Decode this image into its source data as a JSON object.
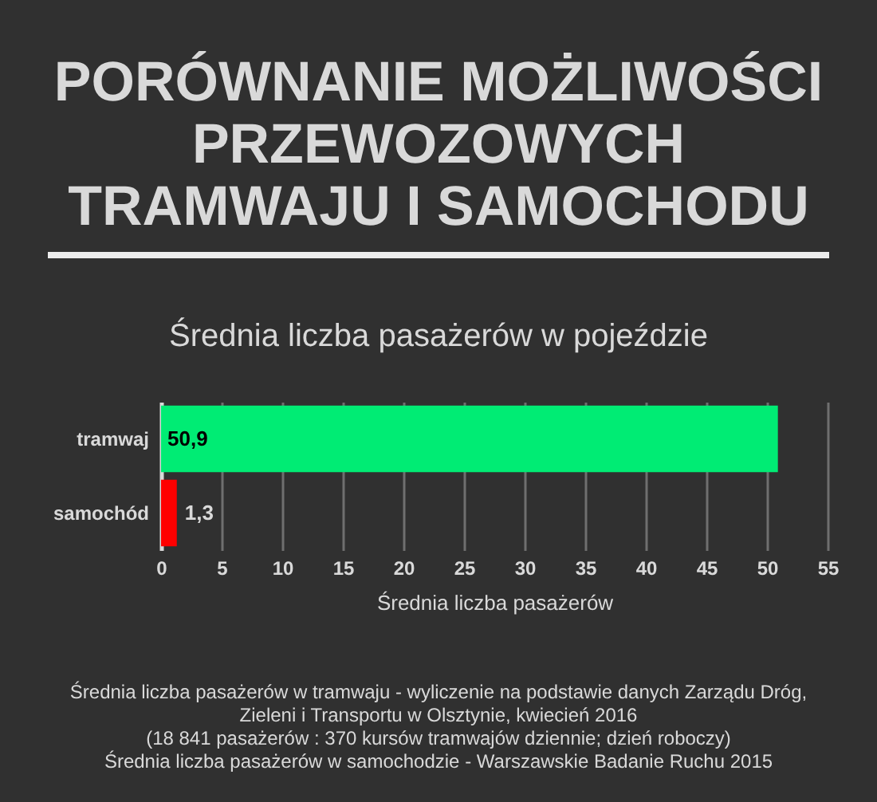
{
  "chart_data": {
    "type": "bar",
    "orientation": "horizontal",
    "title": "PORÓWNANIE MOŻLIWOŚCI\nPRZEWOZOWYCH\nTRAMWAJU I SAMOCHODU",
    "subtitle": "Średnia liczba pasażerów w pojeździe",
    "xlabel": "Średnia liczba pasażerów",
    "categories": [
      "tramwaj",
      "samochód"
    ],
    "values": [
      50.9,
      1.3
    ],
    "colors": [
      "#00ec74",
      "#ff0000"
    ],
    "value_labels": [
      "50,9",
      "1,3"
    ],
    "xlim": [
      0,
      55
    ],
    "xticks": [
      0,
      5,
      10,
      15,
      20,
      25,
      30,
      35,
      40,
      45,
      50,
      55
    ],
    "grid": "x",
    "annotations": [
      "Średnia liczba pasażerów w tramwaju - wyliczenie na podstawie danych Zarządu Dróg,",
      "Zieleni i Transportu w Olsztynie, kwiecień 2016",
      "(18 841 pasażerów : 370 kursów tramwajów dziennie; dzień roboczy)",
      "Średnia liczba pasażerów w samochodzie - Warszawskie Badanie Ruchu 2015"
    ]
  }
}
